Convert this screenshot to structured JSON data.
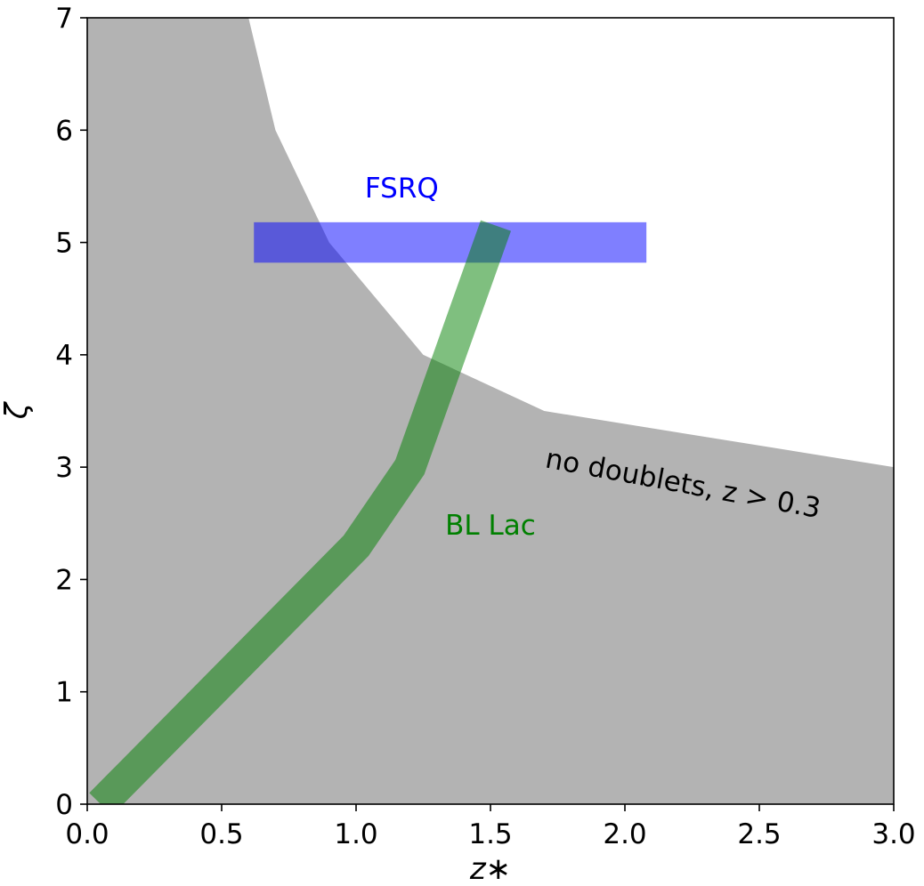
{
  "chart_data": {
    "type": "area",
    "title": "",
    "xlabel": "z∗",
    "ylabel": "ζ",
    "xlim": [
      0,
      3
    ],
    "ylim": [
      0,
      7
    ],
    "xticks": [
      "0.0",
      "0.5",
      "1.0",
      "1.5",
      "2.0",
      "2.5",
      "3.0"
    ],
    "yticks": [
      "0",
      "1",
      "2",
      "3",
      "4",
      "5",
      "6",
      "7"
    ],
    "grid": false,
    "excluded_region": {
      "label": "no doublets, z > 0.3",
      "color": "#b3b3b3",
      "boundary": [
        [
          0.6,
          7.0
        ],
        [
          0.7,
          6.0
        ],
        [
          0.9,
          5.0
        ],
        [
          1.25,
          4.0
        ],
        [
          1.7,
          3.5
        ],
        [
          3.0,
          3.0
        ]
      ]
    },
    "fsrq": {
      "label": "FSRQ",
      "color": "#0000ff",
      "z_range": [
        0.62,
        2.08
      ],
      "zeta_range": [
        4.82,
        5.18
      ]
    },
    "bl_lac": {
      "label": "BL Lac",
      "color": "#008000",
      "path": [
        [
          0.05,
          0.0
        ],
        [
          1.0,
          2.3
        ],
        [
          1.2,
          3.0
        ],
        [
          1.52,
          5.15
        ]
      ]
    }
  }
}
